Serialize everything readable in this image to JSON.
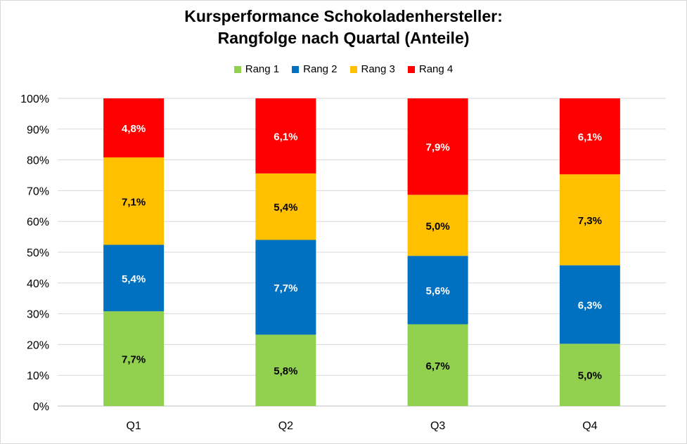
{
  "chart_data": {
    "type": "bar",
    "stacked": true,
    "normalized": true,
    "title_line1": "Kursperformance Schokoladenhersteller:",
    "title_line2": "Rangfolge nach Quartal (Anteile)",
    "xlabel": "",
    "ylabel": "",
    "ylim": [
      0,
      100
    ],
    "yticks": [
      "0%",
      "10%",
      "20%",
      "30%",
      "40%",
      "50%",
      "60%",
      "70%",
      "80%",
      "90%",
      "100%"
    ],
    "categories": [
      "Q1",
      "Q2",
      "Q3",
      "Q4"
    ],
    "legend_position": "top",
    "gridlines": true,
    "series": [
      {
        "name": "Rang 1",
        "color": "#92d050",
        "label_color": "#000000",
        "values": [
          7.7,
          5.8,
          6.7,
          5.0
        ],
        "labels": [
          "7,7%",
          "5,8%",
          "6,7%",
          "5,0%"
        ]
      },
      {
        "name": "Rang 2",
        "color": "#0070c0",
        "label_color": "#ffffff",
        "values": [
          5.4,
          7.7,
          5.6,
          6.3
        ],
        "labels": [
          "5,4%",
          "7,7%",
          "5,6%",
          "6,3%"
        ]
      },
      {
        "name": "Rang 3",
        "color": "#ffc000",
        "label_color": "#000000",
        "values": [
          7.1,
          5.4,
          5.0,
          7.3
        ],
        "labels": [
          "7,1%",
          "5,4%",
          "5,0%",
          "7,3%"
        ]
      },
      {
        "name": "Rang 4",
        "color": "#ff0000",
        "label_color": "#ffffff",
        "values": [
          4.8,
          6.1,
          7.9,
          6.1
        ],
        "labels": [
          "4,8%",
          "6,1%",
          "7,9%",
          "6,1%"
        ]
      }
    ]
  }
}
